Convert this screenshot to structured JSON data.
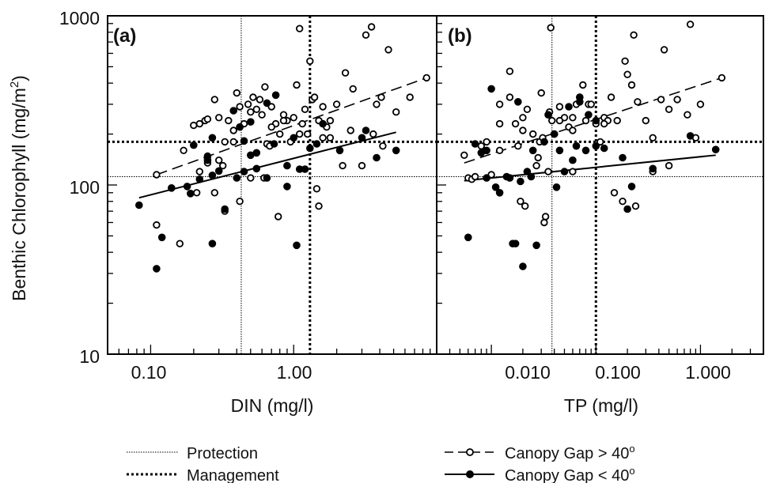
{
  "figure": {
    "ylabel_main": "Benthic Chlorophyll (mg/m",
    "ylabel_sup": "2",
    "ylabel_close": ")"
  },
  "legend": {
    "protection": "Protection",
    "management": "Management",
    "gap_gt": "Canopy Gap > 40",
    "gap_lt": "Canopy Gap < 40",
    "degree": "o"
  },
  "chart_data": [
    {
      "type": "scatter",
      "panel_label": "(a)",
      "xlabel": "DIN (mg/l)",
      "ylabel": "Benthic Chlorophyll (mg/m2)",
      "xscale": "log",
      "yscale": "log",
      "xlim": [
        0.05,
        10
      ],
      "ylim": [
        10,
        1000
      ],
      "xticks": [
        0.1,
        1.0
      ],
      "xtick_labels": [
        "0.10",
        "1.00"
      ],
      "yticks": [
        10,
        100,
        1000
      ],
      "ytick_labels": [
        "10",
        "100",
        "1000"
      ],
      "thresholds": {
        "protection": {
          "x": 0.43,
          "y": 112
        },
        "management": {
          "x": 1.3,
          "y": 180
        }
      },
      "series": [
        {
          "name": "Canopy Gap > 40",
          "marker": "open-circle",
          "line": "dashed",
          "fit": {
            "x": [
              0.11,
              8.5
            ],
            "y": [
              115,
              430
            ]
          },
          "points": [
            [
              0.11,
              115
            ],
            [
              0.11,
              58
            ],
            [
              0.16,
              45
            ],
            [
              0.17,
              160
            ],
            [
              0.2,
              225
            ],
            [
              0.22,
              230
            ],
            [
              0.24,
              240
            ],
            [
              0.25,
              245
            ],
            [
              0.28,
              320
            ],
            [
              0.3,
              250
            ],
            [
              0.33,
              180
            ],
            [
              0.35,
              240
            ],
            [
              0.38,
              210
            ],
            [
              0.4,
              350
            ],
            [
              0.42,
              290
            ],
            [
              0.45,
              230
            ],
            [
              0.48,
              300
            ],
            [
              0.5,
              270
            ],
            [
              0.52,
              330
            ],
            [
              0.55,
              280
            ],
            [
              0.58,
              320
            ],
            [
              0.6,
              260
            ],
            [
              0.63,
              380
            ],
            [
              0.65,
              175
            ],
            [
              0.7,
              290
            ],
            [
              0.75,
              230
            ],
            [
              0.8,
              200
            ],
            [
              0.85,
              260
            ],
            [
              0.9,
              240
            ],
            [
              0.95,
              180
            ],
            [
              1.0,
              250
            ],
            [
              1.05,
              390
            ],
            [
              1.1,
              840
            ],
            [
              1.15,
              230
            ],
            [
              1.2,
              280
            ],
            [
              1.25,
              200
            ],
            [
              1.3,
              540
            ],
            [
              1.35,
              320
            ],
            [
              1.4,
              330
            ],
            [
              1.5,
              240
            ],
            [
              1.6,
              290
            ],
            [
              1.7,
              220
            ],
            [
              1.8,
              190
            ],
            [
              2.0,
              300
            ],
            [
              2.3,
              460
            ],
            [
              2.6,
              370
            ],
            [
              3.0,
              130
            ],
            [
              3.2,
              770
            ],
            [
              3.5,
              860
            ],
            [
              3.8,
              300
            ],
            [
              4.1,
              330
            ],
            [
              4.6,
              630
            ],
            [
              5.2,
              270
            ],
            [
              6.5,
              330
            ],
            [
              8.5,
              430
            ],
            [
              0.28,
              90
            ],
            [
              0.33,
              70
            ],
            [
              0.38,
              180
            ],
            [
              0.42,
              80
            ],
            [
              0.5,
              110
            ],
            [
              0.68,
              170
            ],
            [
              0.78,
              65
            ],
            [
              1.45,
              95
            ],
            [
              1.5,
              75
            ],
            [
              1.1,
              200
            ],
            [
              1.6,
              190
            ],
            [
              2.2,
              130
            ],
            [
              0.25,
              135
            ],
            [
              0.3,
              140
            ],
            [
              0.22,
              120
            ],
            [
              0.21,
              90
            ],
            [
              0.32,
              130
            ],
            [
              0.85,
              240
            ],
            [
              0.62,
              110
            ],
            [
              0.7,
              220
            ],
            [
              1.8,
              240
            ],
            [
              2.5,
              210
            ],
            [
              4.2,
              170
            ],
            [
              3.6,
              200
            ]
          ]
        },
        {
          "name": "Canopy Gap < 40",
          "marker": "filled-circle",
          "line": "solid",
          "fit": {
            "x": [
              0.083,
              5.2
            ],
            "y": [
              84,
              205
            ]
          },
          "points": [
            [
              0.083,
              76
            ],
            [
              0.11,
              32
            ],
            [
              0.12,
              49
            ],
            [
              0.14,
              96
            ],
            [
              0.18,
              98
            ],
            [
              0.19,
              89
            ],
            [
              0.2,
              172
            ],
            [
              0.22,
              108
            ],
            [
              0.25,
              140
            ],
            [
              0.27,
              114
            ],
            [
              0.27,
              190
            ],
            [
              0.3,
              121
            ],
            [
              0.33,
              72
            ],
            [
              0.38,
              275
            ],
            [
              0.4,
              110
            ],
            [
              0.42,
              220
            ],
            [
              0.45,
              182
            ],
            [
              0.5,
              236
            ],
            [
              0.55,
              155
            ],
            [
              0.65,
              110
            ],
            [
              0.65,
              305
            ],
            [
              0.73,
              175
            ],
            [
              0.75,
              340
            ],
            [
              0.9,
              98
            ],
            [
              1.0,
              190
            ],
            [
              1.05,
              44
            ],
            [
              1.1,
              124
            ],
            [
              1.2,
              124
            ],
            [
              1.3,
              165
            ],
            [
              1.45,
              175
            ],
            [
              1.6,
              230
            ],
            [
              2.1,
              160
            ],
            [
              3.0,
              190
            ],
            [
              3.2,
              210
            ],
            [
              3.8,
              145
            ],
            [
              5.2,
              160
            ],
            [
              0.27,
              45
            ],
            [
              0.55,
              125
            ],
            [
              0.9,
              130
            ],
            [
              0.5,
              150
            ],
            [
              0.45,
              120
            ],
            [
              0.25,
              148
            ]
          ]
        }
      ]
    },
    {
      "type": "scatter",
      "panel_label": "(b)",
      "xlabel": "TP (mg/l)",
      "ylabel": "Benthic Chlorophyll (mg/m2)",
      "xscale": "log",
      "yscale": "log",
      "xlim": [
        0.003,
        4
      ],
      "ylim": [
        10,
        1000
      ],
      "xticks": [
        0.01,
        0.1,
        1.0
      ],
      "xtick_labels": [
        "0.010",
        "0.100",
        "1.000"
      ],
      "yticks": [
        10,
        100,
        1000
      ],
      "ytick_labels": [
        "",
        "",
        ""
      ],
      "thresholds": {
        "protection": {
          "x": 0.038,
          "y": 112
        },
        "management": {
          "x": 0.1,
          "y": 180
        }
      },
      "series": [
        {
          "name": "Canopy Gap > 40",
          "marker": "open-circle",
          "line": "dashed",
          "fit": {
            "x": [
              0.0055,
              1.6
            ],
            "y": [
              135,
              430
            ]
          },
          "points": [
            [
              0.0055,
              150
            ],
            [
              0.006,
              110
            ],
            [
              0.0065,
              108
            ],
            [
              0.007,
              112
            ],
            [
              0.008,
              170
            ],
            [
              0.009,
              180
            ],
            [
              0.01,
              115
            ],
            [
              0.012,
              230
            ],
            [
              0.015,
              470
            ],
            [
              0.015,
              330
            ],
            [
              0.017,
              230
            ],
            [
              0.019,
              80
            ],
            [
              0.02,
              250
            ],
            [
              0.021,
              75
            ],
            [
              0.022,
              280
            ],
            [
              0.025,
              200
            ],
            [
              0.027,
              130
            ],
            [
              0.029,
              180
            ],
            [
              0.03,
              350
            ],
            [
              0.032,
              60
            ],
            [
              0.033,
              65
            ],
            [
              0.036,
              270
            ],
            [
              0.037,
              850
            ],
            [
              0.038,
              240
            ],
            [
              0.04,
              200
            ],
            [
              0.045,
              290
            ],
            [
              0.05,
              250
            ],
            [
              0.055,
              220
            ],
            [
              0.06,
              250
            ],
            [
              0.065,
              300
            ],
            [
              0.07,
              330
            ],
            [
              0.075,
              390
            ],
            [
              0.08,
              240
            ],
            [
              0.085,
              300
            ],
            [
              0.1,
              230
            ],
            [
              0.11,
              180
            ],
            [
              0.12,
              250
            ],
            [
              0.13,
              240
            ],
            [
              0.14,
              330
            ],
            [
              0.15,
              90
            ],
            [
              0.18,
              80
            ],
            [
              0.19,
              540
            ],
            [
              0.2,
              450
            ],
            [
              0.22,
              390
            ],
            [
              0.23,
              770
            ],
            [
              0.25,
              310
            ],
            [
              0.3,
              240
            ],
            [
              0.35,
              120
            ],
            [
              0.42,
              320
            ],
            [
              0.45,
              630
            ],
            [
              0.5,
              280
            ],
            [
              0.6,
              320
            ],
            [
              0.75,
              260
            ],
            [
              0.8,
              890
            ],
            [
              0.9,
              190
            ],
            [
              1.0,
              300
            ],
            [
              1.6,
              430
            ],
            [
              0.012,
              160
            ],
            [
              0.02,
              210
            ],
            [
              0.028,
              145
            ],
            [
              0.045,
              240
            ],
            [
              0.06,
              120
            ],
            [
              0.09,
              300
            ],
            [
              0.16,
              240
            ],
            [
              0.24,
              75
            ],
            [
              0.35,
              190
            ],
            [
              0.5,
              130
            ],
            [
              0.012,
              300
            ],
            [
              0.018,
              170
            ],
            [
              0.031,
              190
            ],
            [
              0.06,
              210
            ],
            [
              0.035,
              120
            ],
            [
              0.12,
              230
            ]
          ]
        },
        {
          "name": "Canopy Gap < 40",
          "marker": "filled-circle",
          "line": "solid",
          "fit": {
            "x": [
              0.0055,
              1.4
            ],
            "y": [
              106,
              150
            ]
          },
          "points": [
            [
              0.006,
              49
            ],
            [
              0.007,
              175
            ],
            [
              0.008,
              155
            ],
            [
              0.009,
              110
            ],
            [
              0.01,
              370
            ],
            [
              0.011,
              97
            ],
            [
              0.012,
              90
            ],
            [
              0.014,
              112
            ],
            [
              0.016,
              45
            ],
            [
              0.017,
              45
            ],
            [
              0.018,
              310
            ],
            [
              0.019,
              105
            ],
            [
              0.02,
              33
            ],
            [
              0.022,
              120
            ],
            [
              0.024,
              112
            ],
            [
              0.027,
              44
            ],
            [
              0.032,
              180
            ],
            [
              0.035,
              260
            ],
            [
              0.04,
              200
            ],
            [
              0.042,
              97
            ],
            [
              0.05,
              120
            ],
            [
              0.055,
              290
            ],
            [
              0.06,
              140
            ],
            [
              0.065,
              170
            ],
            [
              0.07,
              330
            ],
            [
              0.08,
              160
            ],
            [
              0.085,
              260
            ],
            [
              0.1,
              170
            ],
            [
              0.12,
              165
            ],
            [
              0.18,
              145
            ],
            [
              0.2,
              72
            ],
            [
              0.22,
              98
            ],
            [
              0.35,
              125
            ],
            [
              0.8,
              195
            ],
            [
              1.4,
              162
            ],
            [
              0.009,
              160
            ],
            [
              0.015,
              110
            ],
            [
              0.045,
              160
            ],
            [
              0.07,
              310
            ],
            [
              0.1,
              240
            ],
            [
              0.025,
              160
            ]
          ]
        }
      ]
    }
  ]
}
